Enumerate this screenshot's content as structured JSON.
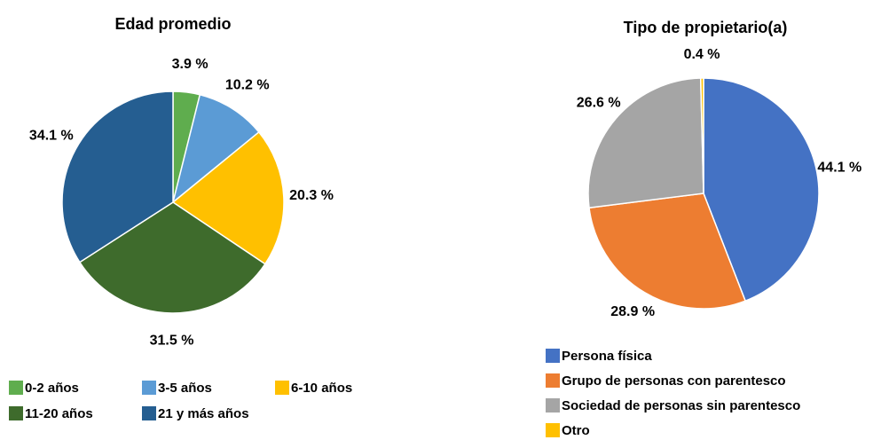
{
  "chart_data": [
    {
      "type": "pie",
      "title": "Edad promedio",
      "categories": [
        "0-2 años",
        "3-5 años",
        "6-10 años",
        "11-20 años",
        "21 y más años"
      ],
      "values": [
        3.9,
        10.2,
        20.3,
        31.5,
        34.1
      ],
      "value_labels": [
        "3.9 %",
        "10.2 %",
        "20.3 %",
        "31.5 %",
        "34.1 %"
      ],
      "colors": [
        "#5fad4e",
        "#5b9bd5",
        "#ffc000",
        "#3e6b2c",
        "#255e91"
      ]
    },
    {
      "type": "pie",
      "title": "Tipo de propietario(a)",
      "categories": [
        "Persona física",
        "Grupo de personas con parentesco",
        "Sociedad de personas sin parentesco",
        "Otro"
      ],
      "values": [
        44.1,
        28.9,
        26.6,
        0.4
      ],
      "value_labels": [
        "44.1 %",
        "28.9 %",
        "26.6 %",
        "0.4 %"
      ],
      "colors": [
        "#4472c4",
        "#ed7d31",
        "#a5a5a5",
        "#ffc000"
      ]
    }
  ]
}
